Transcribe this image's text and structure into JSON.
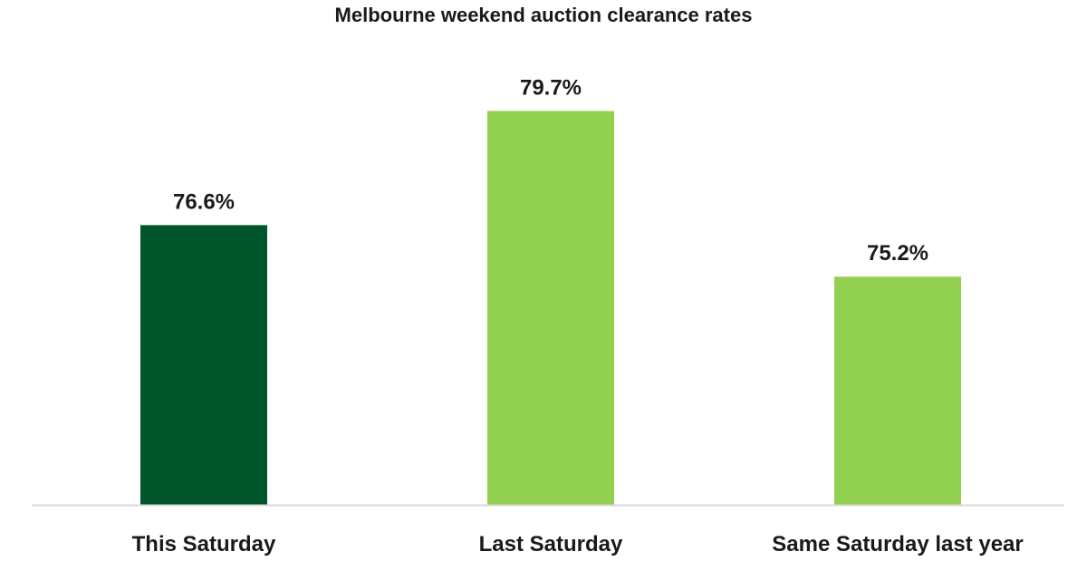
{
  "chart_data": {
    "type": "bar",
    "title": "Melbourne weekend auction clearance rates",
    "categories": [
      "This Saturday",
      "Last Saturday",
      "Same Saturday last year"
    ],
    "series": [
      {
        "values": [
          76.6,
          79.7,
          75.2
        ],
        "data_labels": [
          "76.6%",
          "79.7%",
          "75.2%"
        ]
      }
    ],
    "bar_colors": [
      "#00562a",
      "#92d050",
      "#92d050"
    ],
    "baseline_color": "#d9d9d9",
    "ylim": [
      69.0,
      80.5
    ],
    "grid": false,
    "legend": "none"
  }
}
